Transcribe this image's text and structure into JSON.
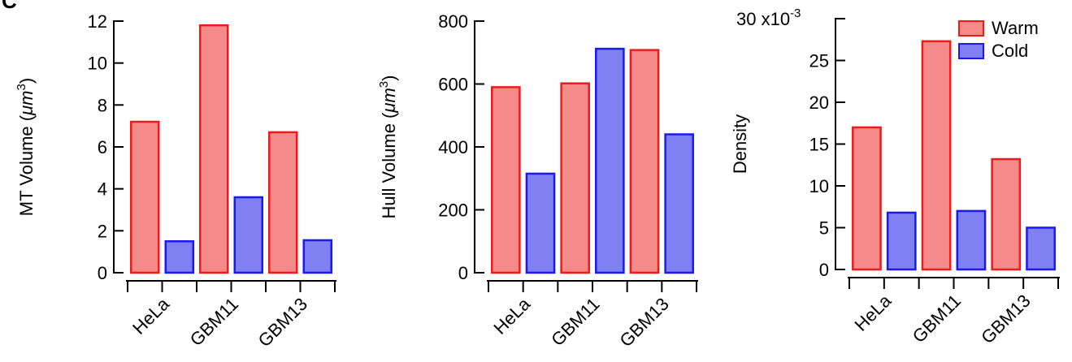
{
  "panel_label": "C",
  "colors": {
    "warm_fill": "#f58a8a",
    "warm_stroke": "#f01a1a",
    "cold_fill": "#8080f2",
    "cold_stroke": "#1a1af0",
    "axis": "#000000"
  },
  "chart_data": [
    {
      "type": "bar",
      "categories": [
        "HeLa",
        "GBM11",
        "GBM13"
      ],
      "series": [
        {
          "name": "Warm",
          "values": [
            7.2,
            11.8,
            6.7
          ]
        },
        {
          "name": "Cold",
          "values": [
            1.5,
            3.6,
            1.55
          ]
        }
      ],
      "ylabel": "MT Volume (μm3)",
      "ylabel_parts": {
        "text": "MT Volume (",
        "unit": "μm",
        "sup": "3",
        "close": ")"
      },
      "ylim": [
        0,
        12
      ],
      "yticks": [
        0,
        2,
        4,
        6,
        8,
        10,
        12
      ],
      "ytick_labels": [
        "0",
        "2",
        "4",
        "6",
        "8",
        "10",
        "12"
      ],
      "legend": false
    },
    {
      "type": "bar",
      "categories": [
        "HeLa",
        "GBM11",
        "GBM13"
      ],
      "series": [
        {
          "name": "Warm",
          "values": [
            590,
            602,
            708
          ]
        },
        {
          "name": "Cold",
          "values": [
            315,
            712,
            440
          ]
        }
      ],
      "ylabel": "Hull Volume (μm3)",
      "ylabel_parts": {
        "text": "Hull Volume (",
        "unit": "μm",
        "sup": "3",
        "close": ")"
      },
      "ylim": [
        0,
        800
      ],
      "yticks": [
        0,
        200,
        400,
        600,
        800
      ],
      "ytick_labels": [
        "0",
        "200",
        "400",
        "600",
        "800"
      ],
      "legend": false
    },
    {
      "type": "bar",
      "categories": [
        "HeLa",
        "GBM11",
        "GBM13"
      ],
      "series": [
        {
          "name": "Warm",
          "values": [
            0.017,
            0.0273,
            0.0132
          ]
        },
        {
          "name": "Cold",
          "values": [
            0.0068,
            0.007,
            0.005
          ]
        }
      ],
      "ylabel": "Density",
      "ylabel_parts": {
        "text": "Density",
        "unit": "",
        "sup": "",
        "close": ""
      },
      "ylim": [
        0,
        0.03
      ],
      "yticks": [
        0,
        0.005,
        0.01,
        0.015,
        0.02,
        0.025,
        0.03
      ],
      "ytick_labels": [
        "0",
        "5",
        "10",
        "15",
        "20",
        "25",
        "30"
      ],
      "multiplier_label": "x10",
      "multiplier_exp": "-3",
      "legend": true,
      "legend_position": "top-right",
      "legend_entries": [
        "Warm",
        "Cold"
      ]
    }
  ]
}
